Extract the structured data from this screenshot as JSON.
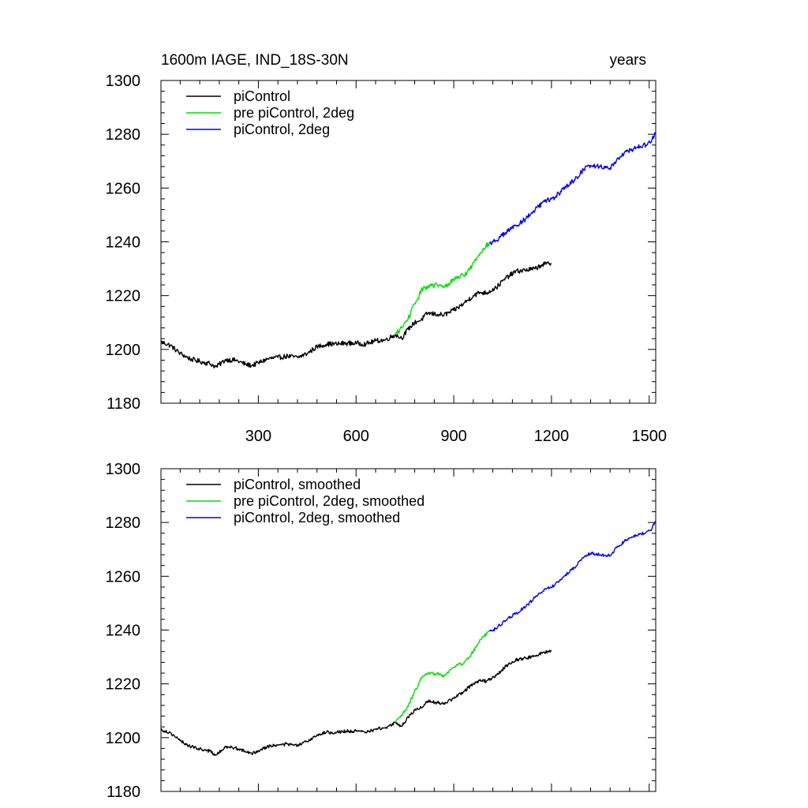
{
  "page": {
    "title_left": "1600m IAGE, IND_18S-30N",
    "title_right": "years"
  },
  "chart_data": [
    {
      "type": "line",
      "panel": "top",
      "title": "1600m IAGE, IND_18S-30N",
      "units_label": "years",
      "xlabel": "",
      "ylabel": "",
      "xlim": [
        1,
        1520
      ],
      "ylim": [
        1180,
        1300
      ],
      "x_ticks": [
        300,
        600,
        900,
        1200,
        1500
      ],
      "x_tick_labels": [
        "300",
        "600",
        "900",
        "1200",
        "1500"
      ],
      "show_x_tick_labels": true,
      "y_ticks": [
        1180,
        1200,
        1220,
        1240,
        1260,
        1280,
        1300
      ],
      "y_tick_labels": [
        "1180",
        "1200",
        "1220",
        "1240",
        "1260",
        "1280",
        "1300"
      ],
      "legend_position": "top-left",
      "series": [
        {
          "name": "piControl",
          "color": "#000000",
          "x": [
            1,
            30,
            60,
            90,
            120,
            150,
            170,
            200,
            230,
            260,
            280,
            300,
            330,
            360,
            390,
            420,
            450,
            480,
            510,
            540,
            570,
            600,
            630,
            660,
            690,
            720,
            740,
            760,
            780,
            800,
            820,
            850,
            870,
            900,
            930,
            960,
            980,
            1000,
            1030,
            1060,
            1090,
            1120,
            1150,
            1170,
            1200
          ],
          "y": [
            1202.8,
            1201.5,
            1198.5,
            1196.5,
            1195.5,
            1194.8,
            1193.5,
            1196.2,
            1196.0,
            1194.5,
            1194.0,
            1195.0,
            1196.5,
            1197.0,
            1197.5,
            1197.0,
            1198.5,
            1201.0,
            1202.0,
            1202.0,
            1202.3,
            1202.3,
            1202.0,
            1203.2,
            1203.5,
            1205.5,
            1204.2,
            1207.5,
            1210.0,
            1211.0,
            1213.5,
            1213.0,
            1212.8,
            1214.5,
            1217.0,
            1220.0,
            1221.2,
            1221.0,
            1223.0,
            1226.5,
            1229.0,
            1229.5,
            1230.0,
            1231.5,
            1232.0
          ]
        },
        {
          "name": "pre piControl, 2deg",
          "color": "#00e000",
          "x": [
            720,
            740,
            760,
            780,
            790,
            800,
            820,
            850,
            870,
            890,
            910,
            930,
            950,
            970,
            990,
            1010
          ],
          "y": [
            1205.5,
            1208.0,
            1211.5,
            1217.0,
            1219.0,
            1222.0,
            1223.5,
            1224.0,
            1223.0,
            1225.0,
            1227.0,
            1227.5,
            1230.0,
            1234.0,
            1237.5,
            1239.5
          ]
        },
        {
          "name": "piControl, 2deg",
          "color": "#0000ee",
          "x": [
            1010,
            1030,
            1060,
            1090,
            1120,
            1150,
            1180,
            1210,
            1240,
            1270,
            1300,
            1320,
            1350,
            1380,
            1400,
            1430,
            1460,
            1490,
            1505,
            1520
          ],
          "y": [
            1239.5,
            1240.5,
            1243.5,
            1246.0,
            1248.5,
            1252.0,
            1255.0,
            1256.5,
            1260.0,
            1263.0,
            1267.0,
            1268.5,
            1268.0,
            1267.5,
            1270.5,
            1273.5,
            1275.0,
            1276.0,
            1277.0,
            1281.0
          ]
        }
      ]
    },
    {
      "type": "line",
      "panel": "bottom",
      "title": "",
      "xlabel": "",
      "ylabel": "",
      "xlim": [
        1,
        1520
      ],
      "ylim": [
        1180,
        1300
      ],
      "x_ticks": [
        300,
        600,
        900,
        1200,
        1500
      ],
      "x_tick_labels": [],
      "show_x_tick_labels": false,
      "y_ticks": [
        1180,
        1200,
        1220,
        1240,
        1260,
        1280,
        1300
      ],
      "y_tick_labels": [
        "1180",
        "1200",
        "1220",
        "1240",
        "1260",
        "1280",
        "1300"
      ],
      "legend_position": "top-left",
      "series": [
        {
          "name": "piControl, smoothed",
          "color": "#000000",
          "x": [
            1,
            30,
            60,
            90,
            120,
            150,
            170,
            200,
            230,
            260,
            280,
            300,
            330,
            360,
            390,
            420,
            450,
            480,
            510,
            540,
            570,
            600,
            630,
            660,
            690,
            720,
            740,
            760,
            780,
            800,
            820,
            850,
            870,
            900,
            930,
            960,
            980,
            1000,
            1030,
            1060,
            1090,
            1120,
            1150,
            1170,
            1200
          ],
          "y": [
            1203.0,
            1201.8,
            1198.8,
            1196.8,
            1195.8,
            1195.0,
            1193.5,
            1196.5,
            1196.2,
            1194.8,
            1194.0,
            1195.2,
            1196.8,
            1197.2,
            1197.6,
            1197.0,
            1198.6,
            1201.0,
            1202.0,
            1202.0,
            1202.4,
            1202.4,
            1202.0,
            1203.2,
            1203.6,
            1205.6,
            1204.2,
            1207.6,
            1210.2,
            1211.2,
            1213.6,
            1213.0,
            1212.8,
            1214.6,
            1217.0,
            1220.2,
            1221.2,
            1221.0,
            1223.0,
            1226.6,
            1229.0,
            1229.6,
            1230.2,
            1231.6,
            1232.2
          ]
        },
        {
          "name": "pre piControl, 2deg, smoothed",
          "color": "#00e000",
          "x": [
            720,
            740,
            760,
            780,
            790,
            800,
            820,
            850,
            870,
            890,
            910,
            930,
            950,
            970,
            990,
            1010
          ],
          "y": [
            1205.6,
            1208.2,
            1211.6,
            1217.2,
            1219.2,
            1222.2,
            1223.6,
            1224.0,
            1223.0,
            1225.2,
            1227.2,
            1227.6,
            1230.2,
            1234.2,
            1237.6,
            1239.6
          ]
        },
        {
          "name": "piControl, 2deg, smoothed",
          "color": "#0000ee",
          "x": [
            1010,
            1030,
            1060,
            1090,
            1120,
            1150,
            1180,
            1210,
            1240,
            1270,
            1300,
            1320,
            1350,
            1380,
            1400,
            1430,
            1460,
            1490,
            1505,
            1520
          ],
          "y": [
            1239.6,
            1240.6,
            1243.6,
            1246.2,
            1248.6,
            1252.2,
            1255.2,
            1256.6,
            1260.2,
            1263.2,
            1267.2,
            1268.6,
            1268.0,
            1267.6,
            1270.6,
            1273.6,
            1275.2,
            1276.2,
            1277.2,
            1280.6
          ]
        }
      ]
    }
  ]
}
